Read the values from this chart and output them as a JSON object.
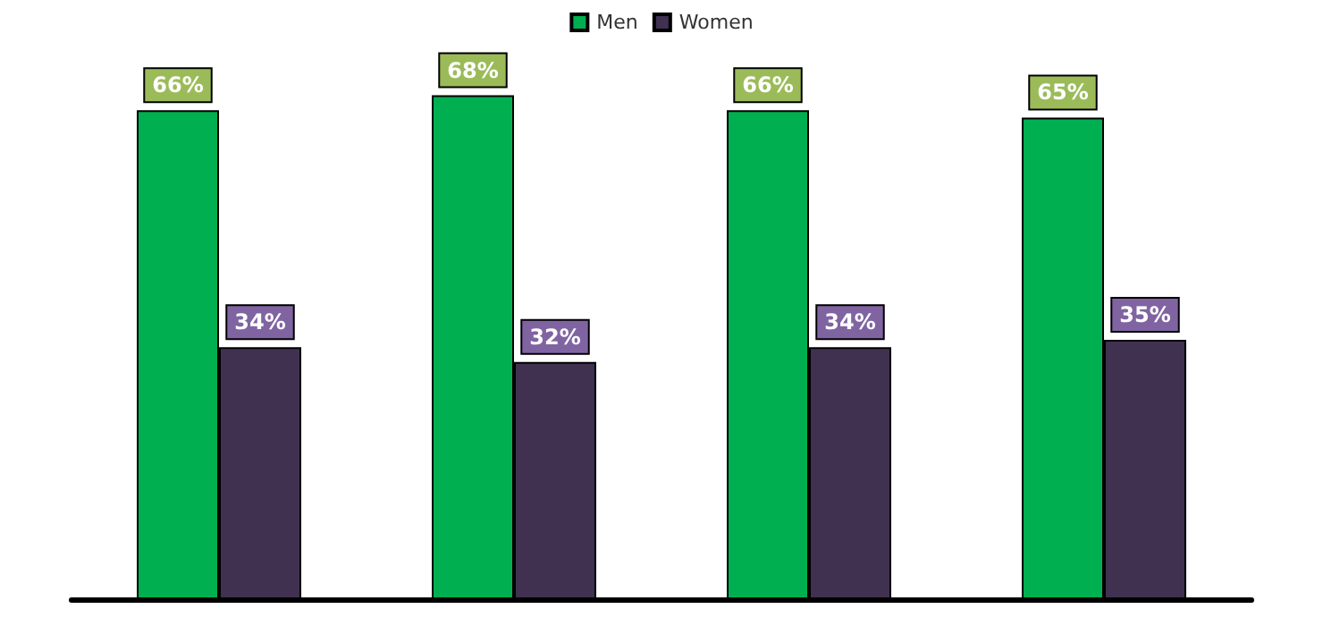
{
  "chart_data": {
    "type": "bar",
    "categories": [
      null,
      null,
      null,
      null
    ],
    "series": [
      {
        "name": "Men",
        "color": "#00b050",
        "values": [
          66,
          68,
          66,
          65
        ],
        "value_labels": [
          "66%",
          "68%",
          "66%",
          "65%"
        ]
      },
      {
        "name": "Women",
        "color": "#403151",
        "values": [
          34,
          32,
          34,
          35
        ],
        "value_labels": [
          "34%",
          "32%",
          "34%",
          "35%"
        ]
      }
    ],
    "legend": "top",
    "grid": false
  }
}
